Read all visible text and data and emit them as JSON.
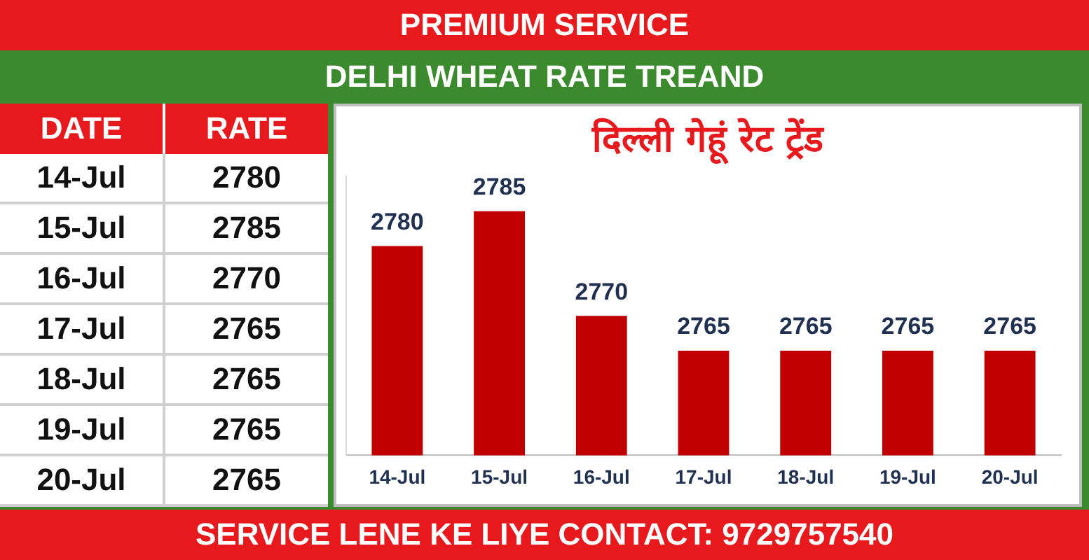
{
  "chart_data": [
    {
      "type": "other",
      "annotations": [
        "DATE",
        "RATE",
        "14-Jul",
        "2780",
        "15-Jul",
        "2785",
        "16-Jul",
        "2770",
        "17-Jul",
        "2765",
        "18-Jul",
        "2765",
        "19-Jul",
        "2765",
        "20-Jul",
        "2765"
      ]
    },
    {
      "type": "bar",
      "title": "दिल्ली गेहूं रेट ट्रेंड",
      "subtitle": "DELHI WHEAT RATE TREAND",
      "annotations": [
        "PREMIUM SERVICE",
        "SERVICE LENE KE LIYE CONTACT: 9729757540"
      ],
      "categories": [
        "14-Jul",
        "15-Jul",
        "16-Jul",
        "17-Jul",
        "18-Jul",
        "19-Jul",
        "20-Jul"
      ],
      "values": [
        2780,
        2785,
        2770,
        2765,
        2765,
        2765,
        2765
      ],
      "color": "#c00000",
      "ylim": [
        2750,
        2790
      ],
      "tick_labels": "x",
      "data_labels": true,
      "grid": false,
      "legend": false
    }
  ]
}
